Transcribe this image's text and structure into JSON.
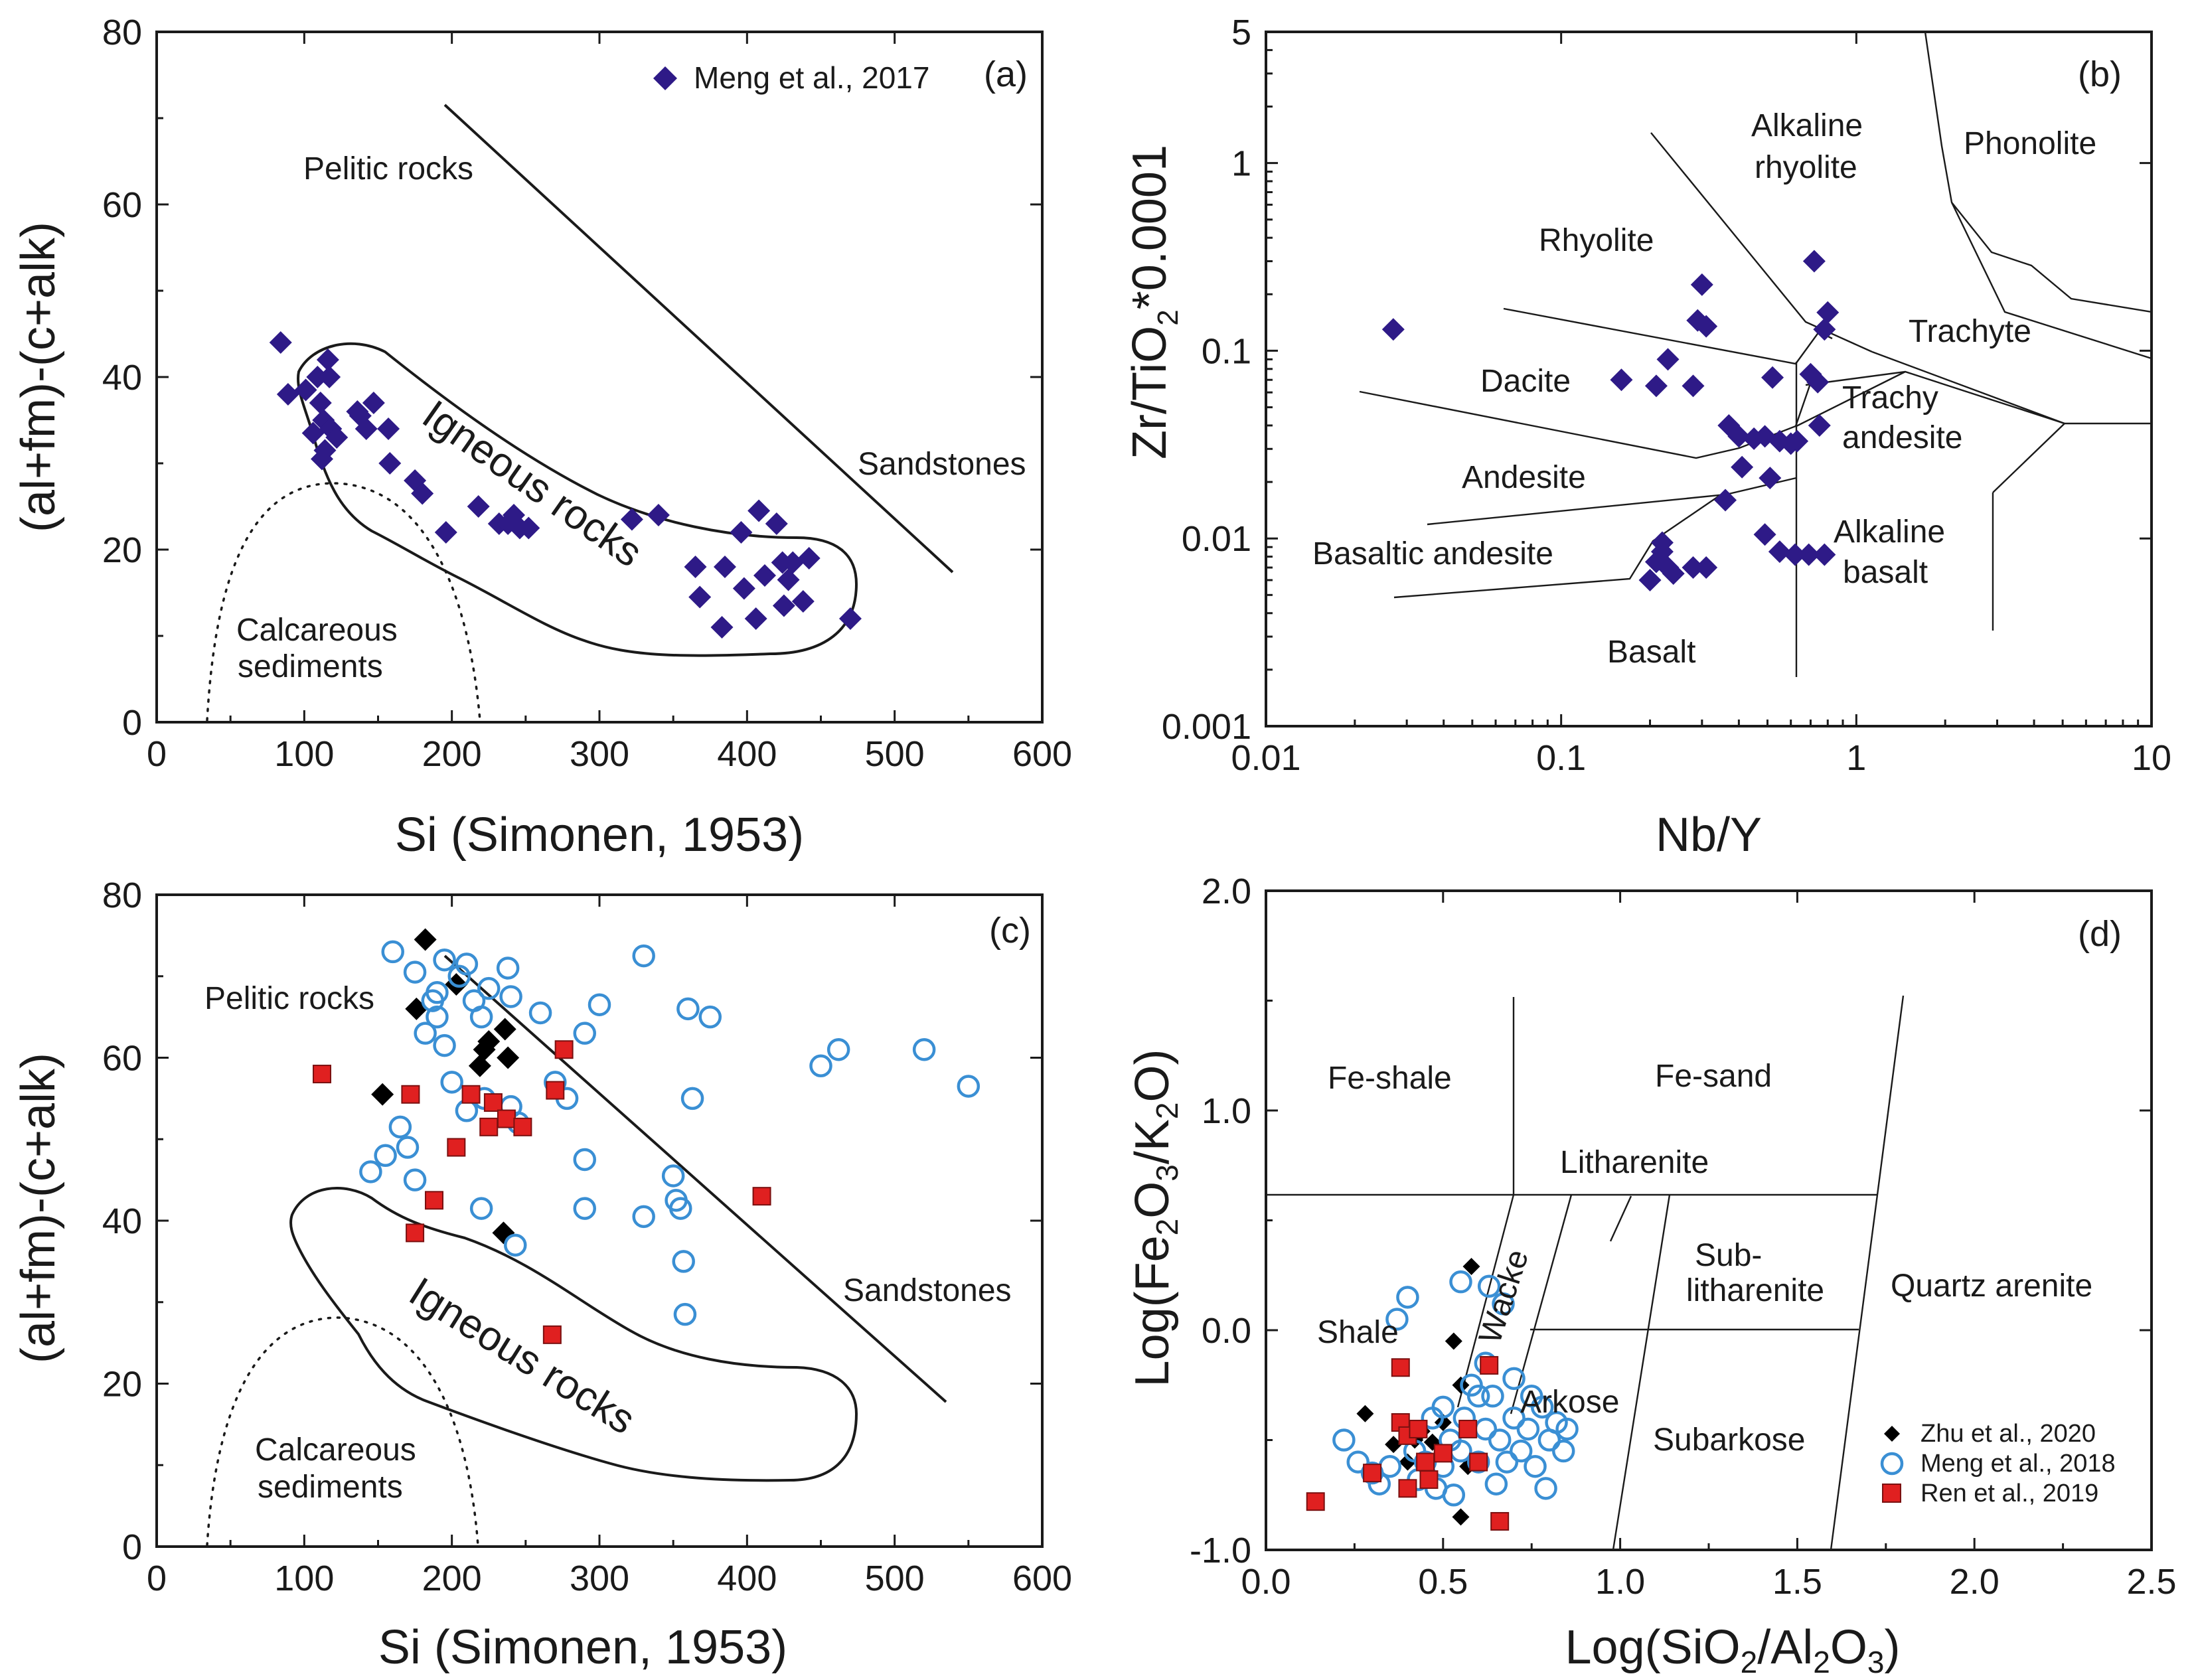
{
  "chart_data": [
    {
      "panel": "(a)",
      "type": "scatter",
      "xlabel": "Si (Simonen, 1953)",
      "ylabel": "(al+fm)-(c+alk)",
      "xlim": [
        0,
        600
      ],
      "ylim": [
        0,
        80
      ],
      "xticks": [
        "0",
        "100",
        "200",
        "300",
        "400",
        "500",
        "600"
      ],
      "yticks": [
        "0",
        "20",
        "40",
        "60",
        "80"
      ],
      "legend": [
        "Meng et al., 2017"
      ],
      "regions": [
        "Pelitic rocks",
        "Sandstones",
        "Igneous rocks",
        "Calcareous",
        "sediments"
      ],
      "series": [
        {
          "name": "Meng et al., 2017",
          "color": "#2e1a87",
          "marker": "diamond",
          "points": [
            [
              84,
              44
            ],
            [
              89,
              38
            ],
            [
              101,
              38.5
            ],
            [
              106,
              33.5
            ],
            [
              109,
              40
            ],
            [
              111,
              37
            ],
            [
              112,
              30.5
            ],
            [
              113,
              35
            ],
            [
              114,
              31.5
            ],
            [
              116,
              42
            ],
            [
              117,
              40
            ],
            [
              118,
              34
            ],
            [
              122,
              33
            ],
            [
              136,
              36
            ],
            [
              138,
              35.5
            ],
            [
              142,
              34
            ],
            [
              147,
              37
            ],
            [
              157,
              34
            ],
            [
              158,
              30
            ],
            [
              175,
              28
            ],
            [
              180,
              26.5
            ],
            [
              196,
              22
            ],
            [
              218,
              25
            ],
            [
              232,
              23
            ],
            [
              238,
              23
            ],
            [
              242,
              24
            ],
            [
              246,
              22.5
            ],
            [
              252,
              22.5
            ],
            [
              322,
              23.5
            ],
            [
              340,
              24
            ],
            [
              365,
              18
            ],
            [
              368,
              14.5
            ],
            [
              383,
              11
            ],
            [
              385,
              18
            ],
            [
              396,
              22
            ],
            [
              398,
              15.5
            ],
            [
              406,
              12
            ],
            [
              408,
              24.5
            ],
            [
              412,
              17
            ],
            [
              420,
              23
            ],
            [
              424,
              18.5
            ],
            [
              425,
              13.5
            ],
            [
              428,
              16.5
            ],
            [
              431,
              18.5
            ],
            [
              438,
              14
            ],
            [
              442,
              19
            ],
            [
              470,
              12
            ]
          ]
        }
      ]
    },
    {
      "panel": "(b)",
      "type": "scatter",
      "xscale": "log",
      "yscale": "log",
      "xlabel": "Nb/Y",
      "ylabel_parts": [
        "Zr/TiO",
        "2",
        "*0.0001"
      ],
      "xlim": [
        0.01,
        10
      ],
      "ylim": [
        0.001,
        5
      ],
      "xticks": [
        "0.01",
        "0.1",
        "1",
        "10"
      ],
      "yticks": [
        "0.001",
        "0.01",
        "0.1",
        "1",
        "5"
      ],
      "regions": [
        "Alkaline",
        "rhyolite",
        "Phonolite",
        "Rhyolite",
        "Trachyte",
        "Dacite",
        "Trachy",
        "andesite",
        "Andesite",
        "Alkaline",
        "basalt",
        "Basaltic andesite",
        "Basalt"
      ],
      "series": [
        {
          "name": "Meng et al., 2017",
          "color": "#2e1a87",
          "marker": "diamond",
          "points": [
            [
              0.027,
              0.13
            ],
            [
              0.16,
              0.07
            ],
            [
              0.21,
              0.065
            ],
            [
              0.23,
              0.09
            ],
            [
              0.28,
              0.065
            ],
            [
              0.29,
              0.145
            ],
            [
              0.3,
              0.225
            ],
            [
              0.31,
              0.135
            ],
            [
              0.36,
              0.016
            ],
            [
              0.37,
              0.04
            ],
            [
              0.4,
              0.035
            ],
            [
              0.41,
              0.024
            ],
            [
              0.45,
              0.034
            ],
            [
              0.49,
              0.035
            ],
            [
              0.51,
              0.021
            ],
            [
              0.52,
              0.072
            ],
            [
              0.55,
              0.033
            ],
            [
              0.6,
              0.032
            ],
            [
              0.63,
              0.033
            ],
            [
              0.7,
              0.075
            ],
            [
              0.72,
              0.3
            ],
            [
              0.74,
              0.068
            ],
            [
              0.75,
              0.04
            ],
            [
              0.78,
              0.13
            ],
            [
              0.8,
              0.16
            ],
            [
              0.22,
              0.0095
            ],
            [
              0.22,
              0.0085
            ],
            [
              0.21,
              0.0075
            ],
            [
              0.23,
              0.007
            ],
            [
              0.24,
              0.0065
            ],
            [
              0.2,
              0.006
            ],
            [
              0.28,
              0.007
            ],
            [
              0.31,
              0.007
            ],
            [
              0.49,
              0.0105
            ],
            [
              0.55,
              0.0085
            ],
            [
              0.62,
              0.0082
            ],
            [
              0.69,
              0.0082
            ],
            [
              0.78,
              0.0082
            ]
          ]
        }
      ]
    },
    {
      "panel": "(c)",
      "type": "scatter",
      "xlabel": "Si (Simonen, 1953)",
      "ylabel": "(al+fm)-(c+alk)",
      "xlim": [
        0,
        600
      ],
      "ylim": [
        0,
        80
      ],
      "xticks": [
        "0",
        "100",
        "200",
        "300",
        "400",
        "500",
        "600"
      ],
      "yticks": [
        "0",
        "20",
        "40",
        "60",
        "80"
      ],
      "regions": [
        "Pelitic rocks",
        "Sandstones",
        "Igneous rocks",
        "Calcareous",
        "sediments"
      ],
      "series": [
        {
          "name": "Zhu et al., 2020",
          "color": "#000000",
          "marker": "diamond",
          "points": [
            [
              153,
              55.5
            ],
            [
              182,
              74.5
            ],
            [
              176,
              66
            ],
            [
              203,
              69
            ],
            [
              222,
              61
            ],
            [
              225,
              62
            ],
            [
              219,
              59
            ],
            [
              236,
              63.5
            ],
            [
              238,
              60
            ],
            [
              235,
              38.5
            ]
          ]
        },
        {
          "name": "Meng et al., 2018",
          "color": "#3a8fd4",
          "marker": "circle",
          "points": [
            [
              160,
              73
            ],
            [
              175,
              70.5
            ],
            [
              190,
              68
            ],
            [
              195,
              72
            ],
            [
              205,
              70
            ],
            [
              210,
              71.5
            ],
            [
              215,
              67
            ],
            [
              225,
              68.5
            ],
            [
              238,
              71
            ],
            [
              240,
              67.5
            ],
            [
              182,
              63
            ],
            [
              187,
              67
            ],
            [
              190,
              65
            ],
            [
              195,
              61.5
            ],
            [
              220,
              65
            ],
            [
              260,
              65.5
            ],
            [
              290,
              63
            ],
            [
              300,
              66.5
            ],
            [
              330,
              72.5
            ],
            [
              360,
              66
            ],
            [
              375,
              65
            ],
            [
              200,
              57
            ],
            [
              210,
              53.5
            ],
            [
              222,
              55
            ],
            [
              240,
              54
            ],
            [
              270,
              57
            ],
            [
              278,
              55
            ],
            [
              245,
              52
            ],
            [
              330,
              40.5
            ],
            [
              350,
              45.5
            ],
            [
              352,
              42.5
            ],
            [
              355,
              41.5
            ],
            [
              357,
              35
            ],
            [
              358,
              28.5
            ],
            [
              363,
              55
            ],
            [
              450,
              59
            ],
            [
              462,
              61
            ],
            [
              520,
              61
            ],
            [
              550,
              56.5
            ],
            [
              145,
              46
            ],
            [
              155,
              48
            ],
            [
              165,
              51.5
            ],
            [
              170,
              49
            ],
            [
              175,
              45
            ],
            [
              220,
              41.5
            ],
            [
              243,
              37
            ],
            [
              290,
              47.5
            ],
            [
              290,
              41.5
            ]
          ]
        },
        {
          "name": "Ren et al., 2019",
          "color": "#e02020",
          "marker": "square",
          "points": [
            [
              112,
              58
            ],
            [
              172,
              55.5
            ],
            [
              175,
              38.5
            ],
            [
              188,
              42.5
            ],
            [
              203,
              49
            ],
            [
              213,
              55.5
            ],
            [
              225,
              51.5
            ],
            [
              228,
              54.5
            ],
            [
              237,
              52.5
            ],
            [
              248,
              51.5
            ],
            [
              268,
              26
            ],
            [
              270,
              56
            ],
            [
              276,
              61
            ],
            [
              410,
              43
            ]
          ]
        }
      ]
    },
    {
      "panel": "(d)",
      "type": "scatter",
      "xlabel_parts": [
        "Log(SiO",
        "2",
        "/Al",
        "2",
        "O",
        "3",
        ")"
      ],
      "ylabel_parts": [
        "Log(Fe",
        "2",
        "O",
        "3",
        "/K",
        "2",
        "O)"
      ],
      "xlim": [
        0,
        2.5
      ],
      "ylim": [
        -1.0,
        2.0
      ],
      "xticks": [
        "0.0",
        "0.5",
        "1.0",
        "1.5",
        "2.0",
        "2.5"
      ],
      "yticks": [
        "-1.0",
        "0.0",
        "1.0",
        "2.0"
      ],
      "legend": [
        "Zhu et al., 2020",
        "Meng et al., 2018",
        "Ren et al., 2019"
      ],
      "regions": [
        "Fe-shale",
        "Fe-sand",
        "Litharenite",
        "Sub-",
        "litharenite",
        "Quartz arenite",
        "Shale",
        "Wacke",
        "Arkose",
        "Subarkose"
      ],
      "series": [
        {
          "name": "Zhu et al., 2020",
          "color": "#000000",
          "marker": "diamond",
          "points": [
            [
              0.28,
              -0.38
            ],
            [
              0.36,
              -0.52
            ],
            [
              0.4,
              -0.6
            ],
            [
              0.44,
              -0.46
            ],
            [
              0.47,
              -0.51
            ],
            [
              0.5,
              -0.42
            ],
            [
              0.53,
              -0.05
            ],
            [
              0.55,
              -0.25
            ],
            [
              0.57,
              -0.62
            ],
            [
              0.58,
              0.29
            ],
            [
              0.42,
              -0.5
            ],
            [
              0.55,
              -0.85
            ]
          ]
        },
        {
          "name": "Meng et al., 2018",
          "color": "#3a8fd4",
          "marker": "circle",
          "points": [
            [
              0.22,
              -0.5
            ],
            [
              0.26,
              -0.6
            ],
            [
              0.3,
              -0.65
            ],
            [
              0.32,
              -0.7
            ],
            [
              0.35,
              -0.62
            ],
            [
              0.37,
              0.05
            ],
            [
              0.4,
              0.15
            ],
            [
              0.42,
              -0.55
            ],
            [
              0.45,
              -0.6
            ],
            [
              0.48,
              -0.72
            ],
            [
              0.5,
              -0.35
            ],
            [
              0.52,
              -0.5
            ],
            [
              0.53,
              -0.75
            ],
            [
              0.55,
              0.22
            ],
            [
              0.55,
              -0.55
            ],
            [
              0.56,
              -0.4
            ],
            [
              0.58,
              -0.25
            ],
            [
              0.6,
              -0.3
            ],
            [
              0.6,
              -0.6
            ],
            [
              0.62,
              -0.45
            ],
            [
              0.62,
              -0.15
            ],
            [
              0.63,
              0.2
            ],
            [
              0.64,
              -0.3
            ],
            [
              0.65,
              -0.7
            ],
            [
              0.66,
              -0.5
            ],
            [
              0.67,
              0.12
            ],
            [
              0.68,
              -0.6
            ],
            [
              0.7,
              -0.22
            ],
            [
              0.7,
              -0.4
            ],
            [
              0.72,
              -0.55
            ],
            [
              0.74,
              -0.45
            ],
            [
              0.75,
              -0.3
            ],
            [
              0.76,
              -0.62
            ],
            [
              0.78,
              -0.35
            ],
            [
              0.79,
              -0.72
            ],
            [
              0.8,
              -0.5
            ],
            [
              0.82,
              -0.42
            ],
            [
              0.84,
              -0.55
            ],
            [
              0.85,
              -0.45
            ],
            [
              0.5,
              -0.62
            ],
            [
              0.47,
              -0.4
            ],
            [
              0.43,
              -0.68
            ]
          ]
        },
        {
          "name": "Ren et al., 2019",
          "color": "#e02020",
          "marker": "square",
          "points": [
            [
              0.14,
              -0.78
            ],
            [
              0.3,
              -0.65
            ],
            [
              0.38,
              -0.17
            ],
            [
              0.38,
              -0.42
            ],
            [
              0.4,
              -0.48
            ],
            [
              0.4,
              -0.72
            ],
            [
              0.43,
              -0.45
            ],
            [
              0.45,
              -0.6
            ],
            [
              0.46,
              -0.68
            ],
            [
              0.5,
              -0.56
            ],
            [
              0.57,
              -0.45
            ],
            [
              0.6,
              -0.6
            ],
            [
              0.63,
              -0.16
            ],
            [
              0.66,
              -0.87
            ]
          ]
        }
      ]
    }
  ]
}
